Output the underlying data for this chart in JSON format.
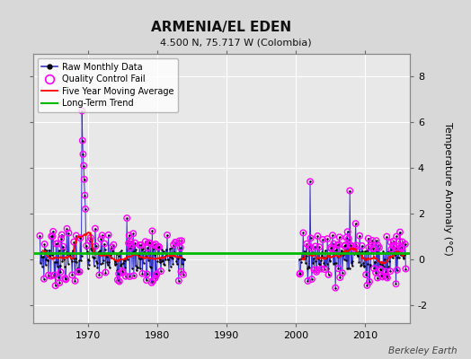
{
  "title": "ARMENIA/EL EDEN",
  "subtitle": "4.500 N, 75.717 W (Colombia)",
  "ylabel_right": "Temperature Anomaly (°C)",
  "xlabel_bottom": "Berkeley Earth",
  "ylim": [
    -2.8,
    9.0
  ],
  "yticks": [
    -2,
    0,
    2,
    4,
    6,
    8
  ],
  "bg_color": "#d8d8d8",
  "plot_bg_color": "#e8e8e8",
  "grid_color": "#ffffff",
  "long_term_trend_y": 0.28,
  "long_term_trend_color": "#00bb00",
  "moving_avg_color": "#ff0000",
  "raw_line_color": "#3333cc",
  "raw_dot_color": "#000000",
  "qc_fail_color": "#ff00ff",
  "xmin": 1962.0,
  "xmax": 2016.5,
  "xticks": [
    1970,
    1980,
    1990,
    2000,
    2010
  ]
}
